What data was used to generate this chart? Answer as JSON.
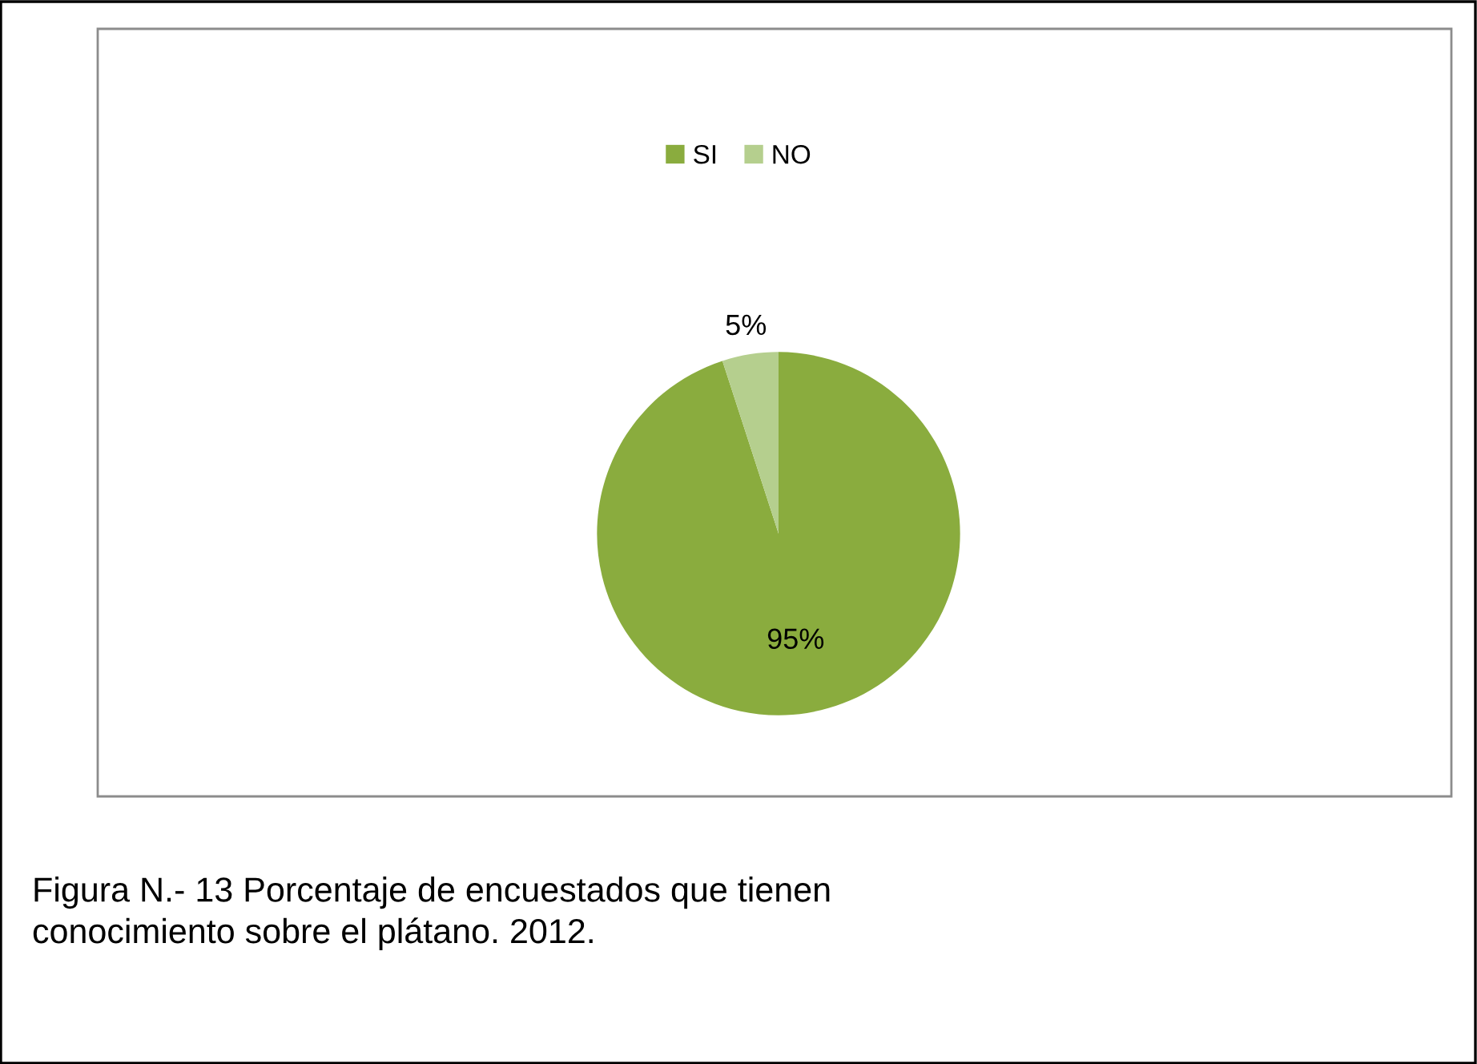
{
  "chart_data": {
    "type": "pie",
    "categories": [
      "SI",
      "NO"
    ],
    "values": [
      95,
      5
    ],
    "colors": [
      "#8aac3e",
      "#b5cf8e"
    ],
    "value_labels": [
      "95%",
      "5%"
    ],
    "legend": "top",
    "annotations": [
      "Figura N.- 13 Porcentaje de encuestados que tienen\nconocimiento sobre el plátano. 2012."
    ]
  }
}
